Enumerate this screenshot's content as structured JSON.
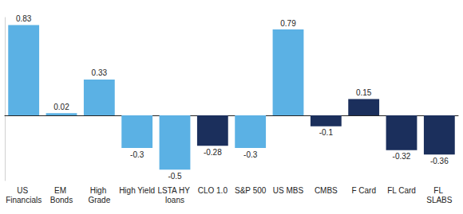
{
  "chart_data": {
    "type": "bar",
    "categories": [
      "US Financials",
      "EM Bonds",
      "High Grade",
      "High Yield",
      "LSTA HY loans",
      "CLO 1.0",
      "S&P 500",
      "US MBS",
      "CMBS",
      "F Card",
      "FL Card",
      "FL SLABS"
    ],
    "values": [
      0.83,
      0.02,
      0.33,
      -0.3,
      -0.5,
      -0.28,
      -0.3,
      0.79,
      -0.1,
      0.15,
      -0.32,
      -0.36
    ],
    "colors": [
      "#5bb1e4",
      "#5bb1e4",
      "#5bb1e4",
      "#5bb1e4",
      "#5bb1e4",
      "#1b2f5c",
      "#5bb1e4",
      "#5bb1e4",
      "#1b2f5c",
      "#1b2f5c",
      "#1b2f5c",
      "#1b2f5c"
    ],
    "ylim": [
      -0.6,
      0.9
    ],
    "data_labels": true,
    "tick_labels": "x",
    "grid": false
  }
}
